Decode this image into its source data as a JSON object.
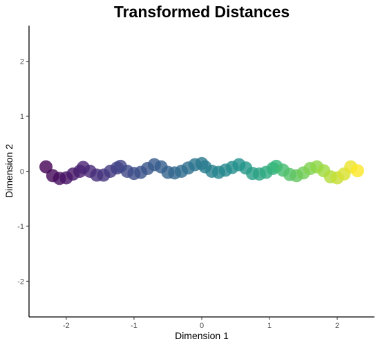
{
  "chart_data": {
    "type": "scatter",
    "title": "Transformed Distances",
    "xlabel": "Dimension 1",
    "ylabel": "Dimension 2",
    "xlim": [
      -2.55,
      2.55
    ],
    "ylim": [
      -2.65,
      2.65
    ],
    "xticks": [
      -2,
      -1,
      0,
      1,
      2
    ],
    "yticks": [
      -2,
      -1,
      0,
      1,
      2
    ],
    "xtick_labels": [
      "-2",
      "-1",
      "0",
      "1",
      "2"
    ],
    "ytick_labels": [
      "-2",
      "-1",
      "0",
      "1",
      "2"
    ],
    "grid": false,
    "legend": "none",
    "colormap": "viridis",
    "point_alpha": 0.8,
    "series": [
      {
        "x": [
          -2.3,
          -2.2,
          -2.1,
          -2.0,
          -1.9,
          -1.8,
          -1.75,
          -1.65,
          -1.55,
          -1.45,
          -1.35,
          -1.25,
          -1.2,
          -1.1,
          -1.0,
          -0.9,
          -0.8,
          -0.7,
          -0.6,
          -0.5,
          -0.4,
          -0.3,
          -0.2,
          -0.1,
          0.0,
          0.05,
          0.15,
          0.25,
          0.35,
          0.45,
          0.55,
          0.65,
          0.75,
          0.85,
          0.95,
          1.05,
          1.1,
          1.2,
          1.3,
          1.4,
          1.5,
          1.6,
          1.7,
          1.8,
          1.9,
          2.0,
          2.1,
          2.2,
          2.3
        ],
        "y": [
          0.08,
          -0.08,
          -0.13,
          -0.12,
          -0.05,
          0.0,
          0.07,
          0.0,
          -0.07,
          -0.07,
          0.0,
          0.06,
          0.09,
          0.0,
          -0.04,
          -0.02,
          0.05,
          0.12,
          0.08,
          -0.02,
          -0.03,
          0.0,
          0.06,
          0.12,
          0.14,
          0.08,
          0.0,
          -0.02,
          0.02,
          0.07,
          0.12,
          0.06,
          -0.04,
          -0.05,
          -0.02,
          0.05,
          0.09,
          0.02,
          -0.06,
          -0.08,
          -0.03,
          0.05,
          0.08,
          0.01,
          -0.1,
          -0.12,
          -0.05,
          0.08,
          0.01
        ]
      }
    ]
  }
}
